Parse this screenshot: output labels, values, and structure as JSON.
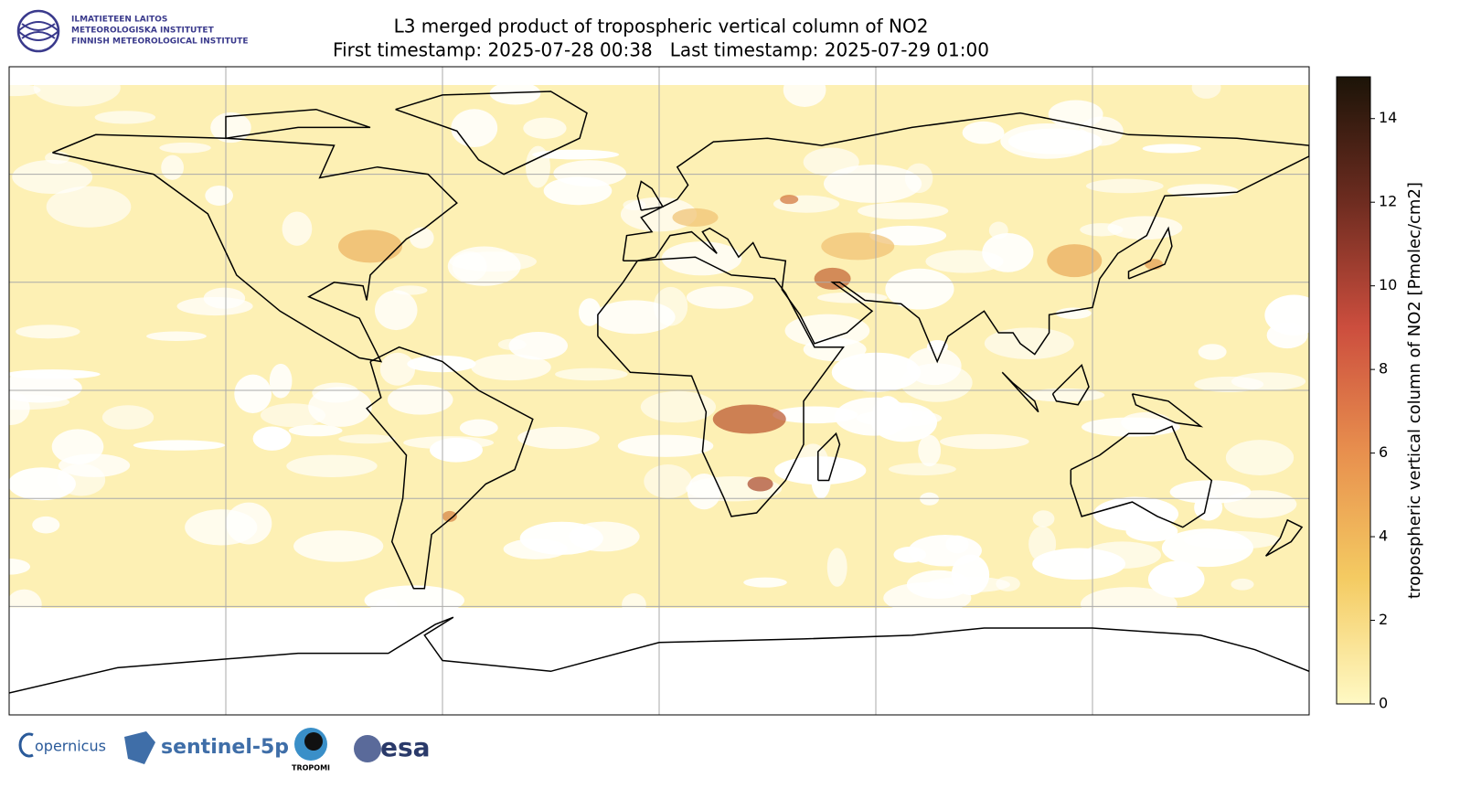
{
  "header": {
    "logo_lines": [
      "ILMATIETEEN LAITOS",
      "METEOROLOGISKA INSTITUTET",
      "FINNISH METEOROLOGICAL INSTITUTE"
    ]
  },
  "map": {
    "title": "L3 merged product of tropospheric vertical column of NO2",
    "subtitle": "First timestamp: 2025-07-28 00:38   Last timestamp: 2025-07-29 01:00",
    "colorbar": {
      "label": "tropospheric vertical column of NO2 [Pmolec/cm2]",
      "lim": [
        0,
        15
      ],
      "ticks": [
        0,
        2,
        4,
        6,
        8,
        10,
        12,
        14
      ]
    }
  },
  "footer": {
    "logos": [
      "opernicus",
      "sentinel-5p",
      "TROPOMI",
      "esa"
    ]
  }
}
